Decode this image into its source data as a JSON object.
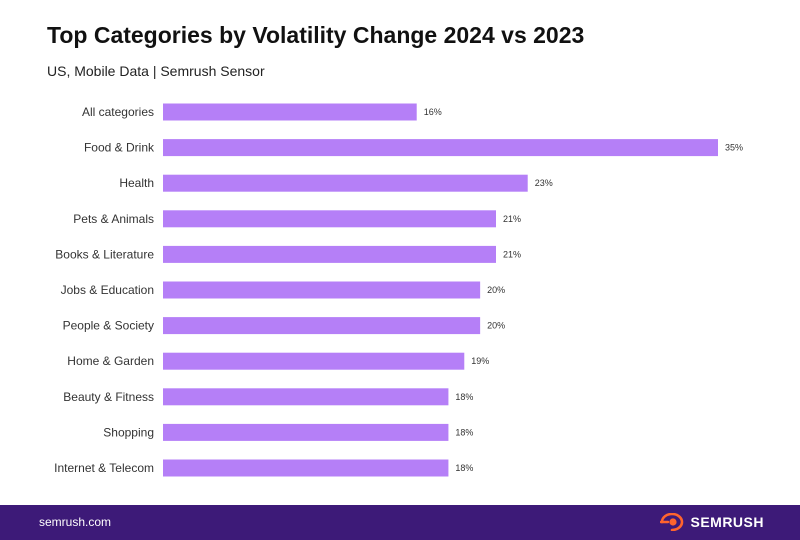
{
  "header": {
    "title": "Top Categories by Volatility Change 2024 vs 2023",
    "subtitle": "US, Mobile Data | Semrush Sensor"
  },
  "footer": {
    "url": "semrush.com",
    "brand": "SEMRUSH",
    "brand_icon": "semrush-logo-icon"
  },
  "colors": {
    "bar": "#b57ff7",
    "footer_bg": "#3d1a78",
    "brand_accent": "#ff642d"
  },
  "chart_data": {
    "type": "bar",
    "orientation": "horizontal",
    "categories": [
      "All categories",
      "Food & Drink",
      "Health",
      "Pets & Animals",
      "Books & Literature",
      "Jobs & Education",
      "People & Society",
      "Home & Garden",
      "Beauty & Fitness",
      "Shopping",
      "Internet & Telecom"
    ],
    "values": [
      16,
      35,
      23,
      21,
      21,
      20,
      20,
      19,
      18,
      18,
      18
    ],
    "value_labels": [
      "16%",
      "35%",
      "23%",
      "21%",
      "21%",
      "20%",
      "20%",
      "19%",
      "18%",
      "18%",
      "18%"
    ],
    "unit": "%",
    "title": "Top Categories by Volatility Change 2024 vs 2023",
    "subtitle": "US, Mobile Data | Semrush Sensor",
    "xlim": [
      0,
      35
    ],
    "grid": false,
    "legend": "none"
  }
}
